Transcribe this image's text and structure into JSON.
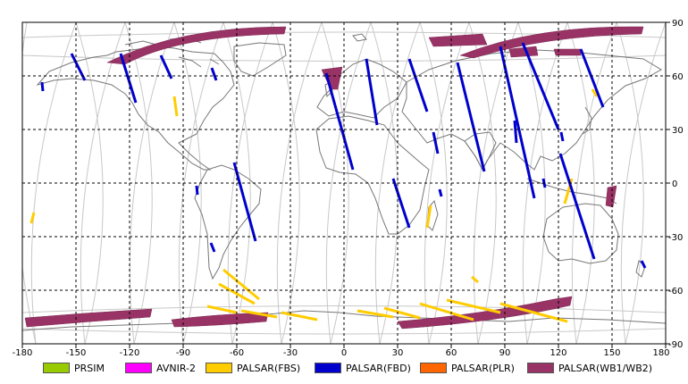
{
  "map": {
    "x_ticks": [
      "-180",
      "-150",
      "-120",
      "-90",
      "-60",
      "-30",
      "0",
      "30",
      "60",
      "90",
      "120",
      "150",
      "180"
    ],
    "y_ticks": [
      "90",
      "60",
      "30",
      "0",
      "-30",
      "-60",
      "-90"
    ]
  },
  "legend": [
    {
      "label": "PRSIM",
      "color": "#99cc00"
    },
    {
      "label": "AVNIR-2",
      "color": "#ff00ff"
    },
    {
      "label": "PALSAR(FBS)",
      "color": "#ffcc00"
    },
    {
      "label": "PALSAR(FBD)",
      "color": "#0000cc"
    },
    {
      "label": "PALSAR(PLR)",
      "color": "#ff6600"
    },
    {
      "label": "PALSAR(WB1/WB2)",
      "color": "#993366"
    }
  ],
  "colors": {
    "frame": "#000000",
    "grid": "#000000",
    "orbit": "#c8c8c8",
    "coast": "#777777",
    "fbs": "#ffcc00",
    "fbd": "#0000cc",
    "wb": "#993366"
  }
}
